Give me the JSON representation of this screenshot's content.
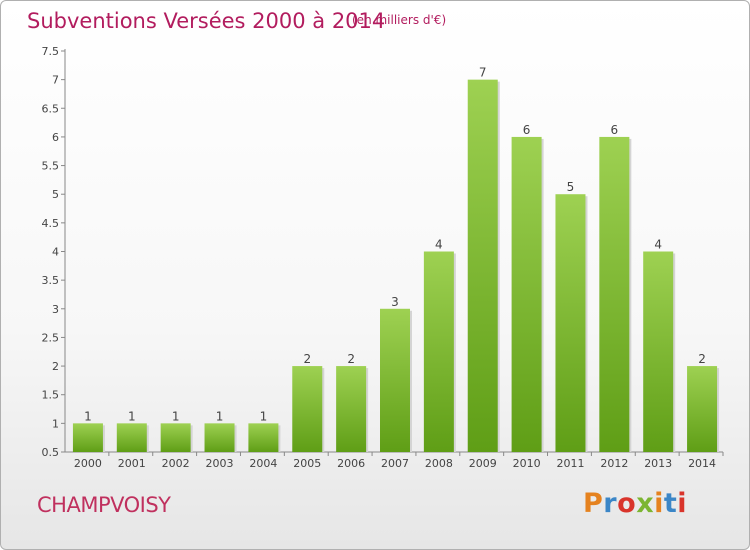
{
  "header": {
    "title": "Subventions Versées 2000 à 2014",
    "unit": "(en milliers d'€)"
  },
  "footer": {
    "commune": "CHAMPVOISY",
    "logo_text": "Proxiti"
  },
  "colors": {
    "title": "#b21c5e",
    "bar_light": "#9ed152",
    "bar_dark": "#5f9e16",
    "logo_letters": [
      "#e5821f",
      "#3b86c7",
      "#d9342b",
      "#7cb532",
      "#e5821f",
      "#3b86c7",
      "#d9342b"
    ]
  },
  "chart_data": {
    "type": "bar",
    "categories": [
      "2000",
      "2001",
      "2002",
      "2003",
      "2004",
      "2005",
      "2006",
      "2007",
      "2008",
      "2009",
      "2010",
      "2011",
      "2012",
      "2013",
      "2014"
    ],
    "values": [
      1,
      1,
      1,
      1,
      1,
      2,
      2,
      3,
      4,
      7,
      6,
      5,
      6,
      4,
      2
    ],
    "data_labels": [
      "1",
      "1",
      "1",
      "1",
      "1",
      "2",
      "2",
      "3",
      "4",
      "7",
      "6",
      "5",
      "6",
      "4",
      "2"
    ],
    "y_ticks": [
      "0.5",
      "1",
      "1.5",
      "2",
      "2.5",
      "3",
      "3.5",
      "4",
      "4.5",
      "5",
      "5.5",
      "6",
      "6.5",
      "7",
      "7.5"
    ],
    "ylim": [
      0.5,
      7.5
    ],
    "grid": false,
    "legend": "none"
  }
}
